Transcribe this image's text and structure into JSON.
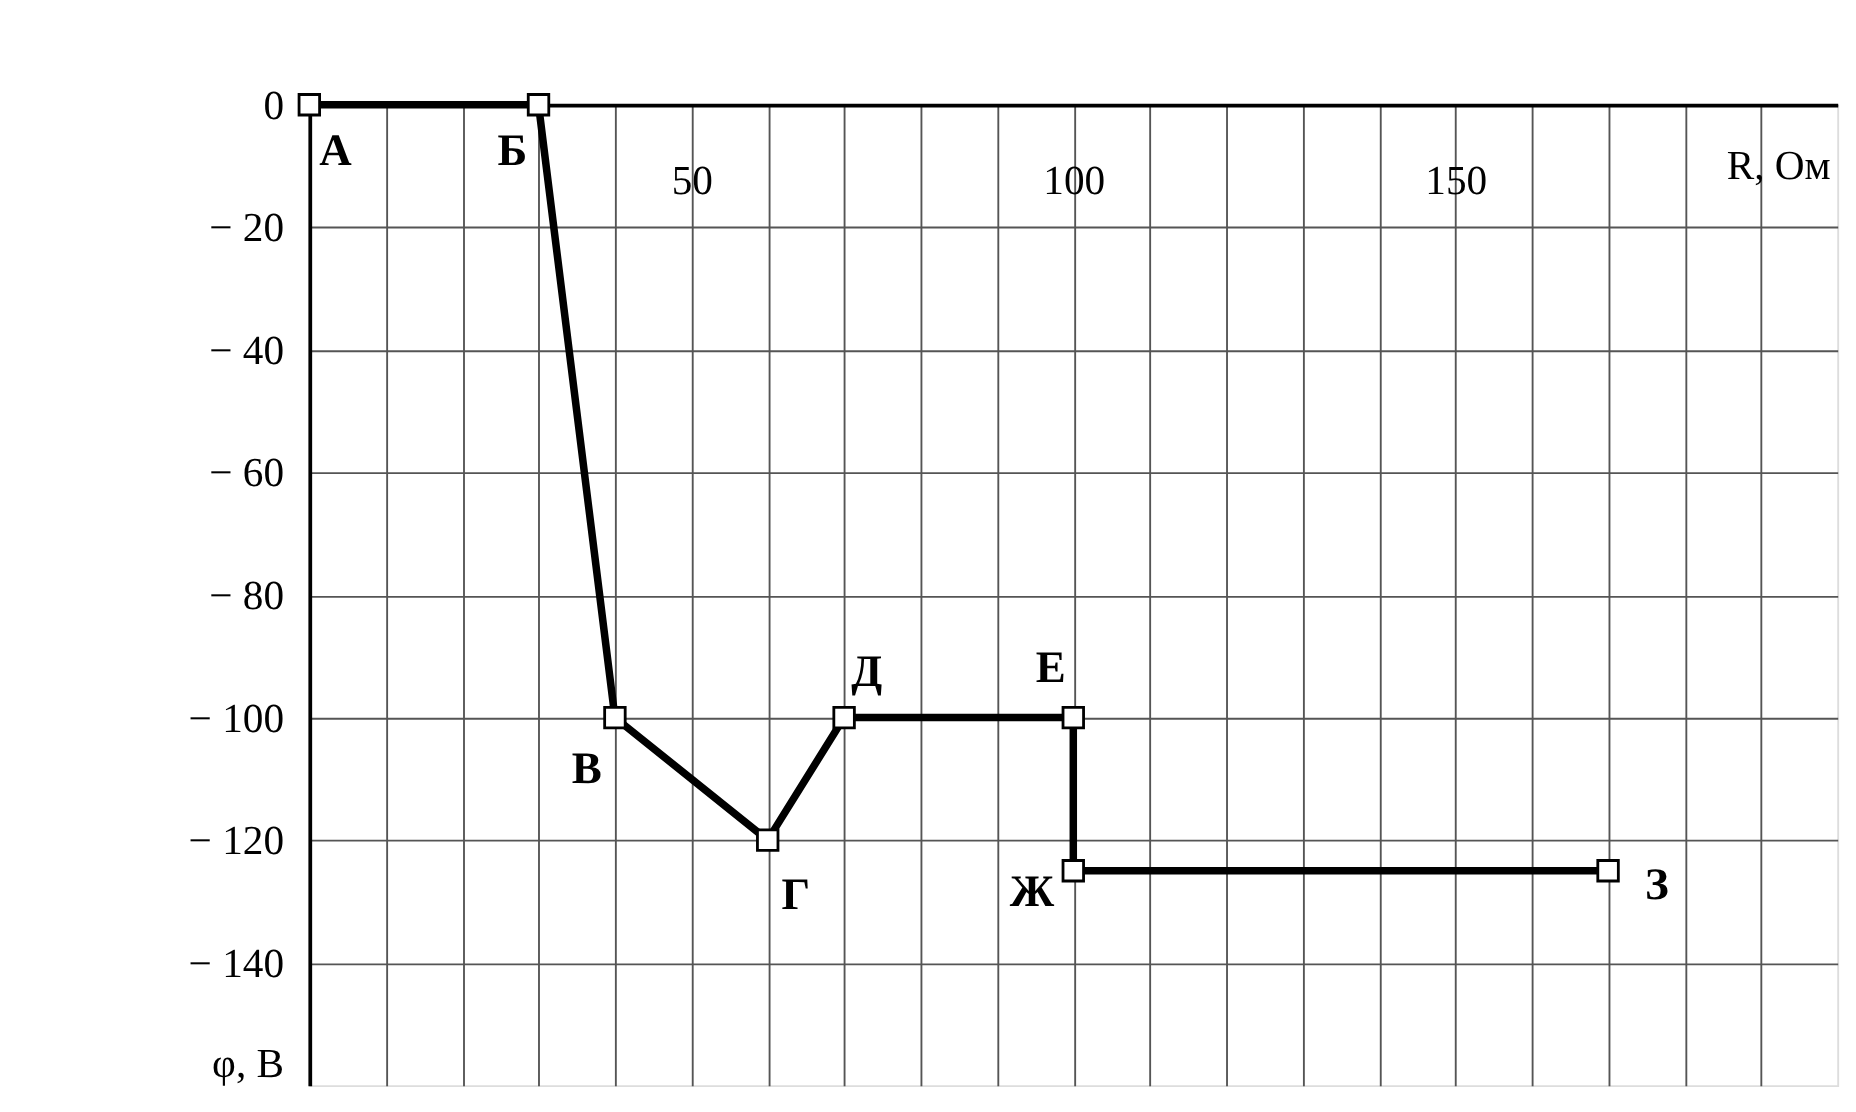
{
  "chart_data": {
    "type": "line",
    "xlabel": "R, Ом",
    "ylabel": "φ, В",
    "x": [
      0,
      30,
      40,
      60,
      70,
      100,
      100,
      170
    ],
    "series": [
      {
        "color": "#000000",
        "values": [
          0,
          0,
          -100,
          -120,
          -100,
          -100,
          -125,
          -125
        ]
      }
    ],
    "xlim": [
      0,
      200
    ],
    "xticks": [
      {
        "value": 10,
        "label": null
      },
      {
        "value": 20,
        "label": null
      },
      {
        "value": 30,
        "label": null
      },
      {
        "value": 40,
        "label": null
      },
      50,
      {
        "value": 60,
        "label": null
      },
      {
        "value": 70,
        "label": null
      },
      {
        "value": 80,
        "label": null
      },
      {
        "value": 90,
        "label": null
      },
      100,
      {
        "value": 110,
        "label": null
      },
      {
        "value": 120,
        "label": null
      },
      {
        "value": 130,
        "label": null
      },
      {
        "value": 140,
        "label": null
      },
      150,
      {
        "value": 160,
        "label": null
      },
      {
        "value": 170,
        "label": null
      },
      {
        "value": 180,
        "label": null
      },
      {
        "value": 190,
        "label": null
      }
    ],
    "ylim": [
      -160,
      0
    ],
    "yticks": [
      0,
      -20,
      -40,
      -60,
      -80,
      -100,
      -120,
      -140
    ],
    "grid": true,
    "marker": "square",
    "line_style": "solid",
    "annotations": [
      {
        "text": "А",
        "x": 0,
        "y": 0
      },
      {
        "text": "Б",
        "x": 30,
        "y": 0
      },
      {
        "text": "В",
        "x": 40,
        "y": -100
      },
      {
        "text": "Г",
        "x": 60,
        "y": -120
      },
      {
        "text": "Д",
        "x": 70,
        "y": -100
      },
      {
        "text": "Е",
        "x": 100,
        "y": -100
      },
      {
        "text": "Ж",
        "x": 100,
        "y": -125
      },
      {
        "text": "З",
        "x": 170,
        "y": -125
      }
    ]
  }
}
